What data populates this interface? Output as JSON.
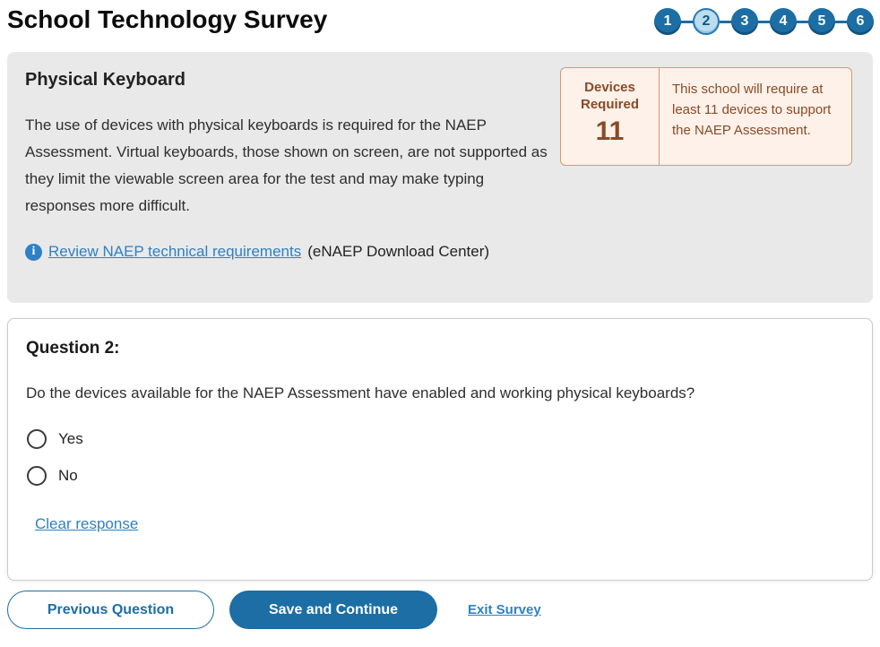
{
  "page": {
    "title": "School Technology Survey"
  },
  "stepper": {
    "steps": [
      "1",
      "2",
      "3",
      "4",
      "5",
      "6"
    ],
    "current_step": "2"
  },
  "info_panel": {
    "heading": "Physical Keyboard",
    "body": "The use of devices with physical keyboards is required for the NAEP Assessment. Virtual keyboards, those shown on screen, are not supported as they limit the viewable screen area for the test and may make typing responses more difficult.",
    "info_icon_glyph": "i",
    "link_text": "Review NAEP technical requirements",
    "link_suffix": "(eNAEP Download Center)"
  },
  "devices_box": {
    "label": "Devices Required",
    "value": "11",
    "description": "This school will require at least 11 devices to support the NAEP Assessment."
  },
  "question": {
    "heading": "Question 2:",
    "text": "Do the devices available for the NAEP Assessment have enabled and working physical keyboards?",
    "options": [
      {
        "label": "Yes",
        "selected": false
      },
      {
        "label": "No",
        "selected": false
      }
    ],
    "clear_label": "Clear response"
  },
  "footer": {
    "previous_label": "Previous Question",
    "save_label": "Save and Continue",
    "exit_label": "Exit Survey"
  },
  "colors": {
    "primary_blue": "#1C6EA4",
    "link_blue": "#2E81C4",
    "active_step_fill": "#BCDDEF",
    "active_step_border": "#2478B3",
    "panel_gray": "#E9E9E9",
    "alert_peach_bg": "#FDF1E9",
    "alert_peach_border": "#D89A6E",
    "alert_brown_text": "#8A4A25"
  }
}
